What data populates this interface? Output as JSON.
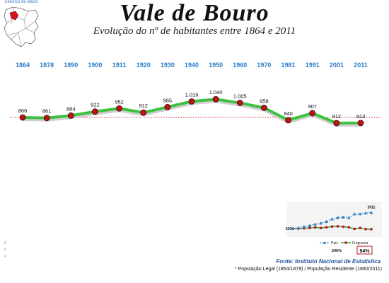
{
  "map": {
    "caption": "Celorico de Basto"
  },
  "header": {
    "title": "Vale de Bouro",
    "subtitle": "Evolução do nº de habitantes entre 1864 e 2011"
  },
  "chart_data": [
    {
      "type": "line",
      "title": "Vale de Bouro",
      "subtitle": "Evolução do nº de habitantes entre 1864 e 2011",
      "categories": [
        "1864",
        "1878",
        "1890",
        "1900",
        "1911",
        "1920",
        "1930",
        "1940",
        "1950",
        "1960",
        "1970",
        "1981",
        "1991",
        "2001",
        "2011"
      ],
      "series": [
        {
          "values": [
            866,
            861,
            884,
            922,
            952,
            912,
            965,
            1019,
            1040,
            1005,
            958,
            840,
            907,
            812,
            813
          ]
        }
      ],
      "data_labels": [
        "866",
        "861",
        "884",
        "922",
        "952",
        "912",
        "965",
        "1.019",
        "1.040",
        "1.005",
        "958",
        "840",
        "907",
        "812",
        "813"
      ],
      "reference_line": 866,
      "ylim": [
        500,
        1300
      ],
      "grid": false,
      "colors": {
        "line": "#3ec23e",
        "marker": "#c0121c",
        "reference": "#d01818",
        "year_labels": "#2c7cc4"
      }
    },
    {
      "type": "line",
      "categories": [
        "1864",
        "1878",
        "1890",
        "1900",
        "1911",
        "1920",
        "1930",
        "1940",
        "1950",
        "1960",
        "1970",
        "1981",
        "1991",
        "2001",
        "2011"
      ],
      "series": [
        {
          "name": "País",
          "values": [
            100,
            107,
            117,
            127,
            140,
            149,
            164,
            187,
            200,
            204,
            200,
            233,
            234,
            241,
            246
          ]
        },
        {
          "name": "Freguesia",
          "values": [
            100,
            99,
            102,
            106,
            110,
            105,
            111,
            118,
            120,
            116,
            111,
            97,
            105,
            94,
            94
          ]
        }
      ],
      "annotations": {
        "top_label": "2011",
        "start_label": "100",
        "pais_pct": "246%",
        "freguesia_pct": "94%"
      },
      "legend": "bottom",
      "colors": {
        "pais": "#2c7cc4",
        "freguesia": "#c0121c",
        "freguesia_line": "#2f9e2f"
      }
    }
  ],
  "source": "Fonte: Instituto Nacional de Estatística",
  "footnote": "* População Legal (1864/1878) /  População Residente (1890/2011)",
  "left_marks": [
    "C",
    "s",
    "s"
  ]
}
